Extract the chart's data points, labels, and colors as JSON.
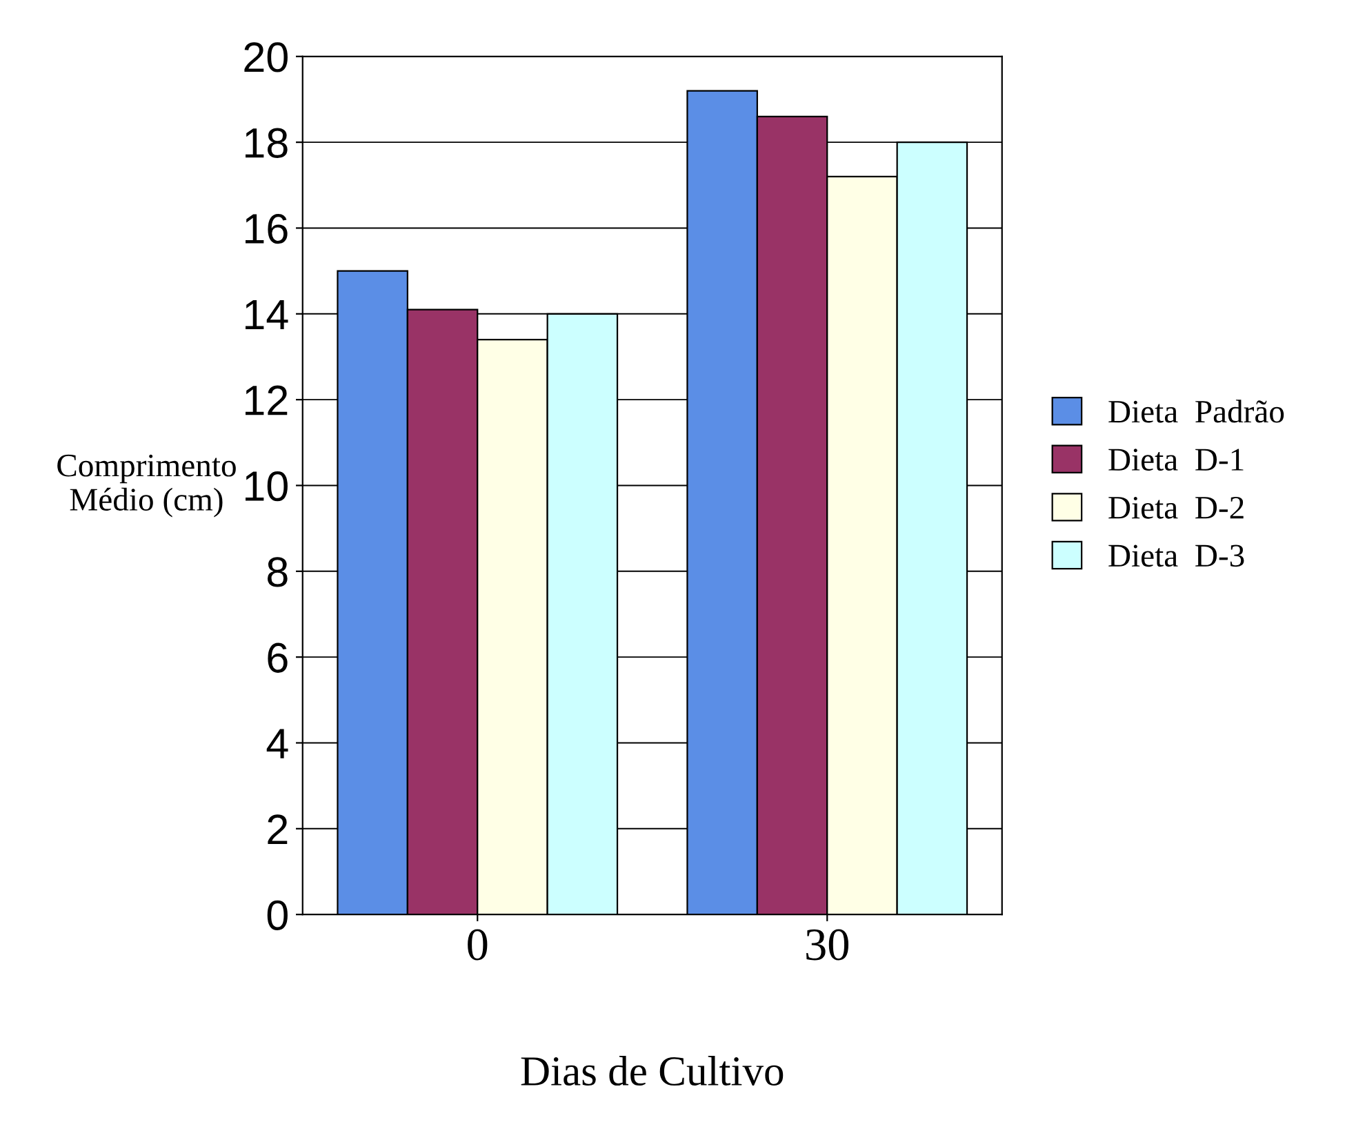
{
  "chart_data": {
    "type": "bar",
    "xlabel": "Dias de Cultivo",
    "ylabel": "Comprimento\nMédio (cm)",
    "categories": [
      "0",
      "30"
    ],
    "series": [
      {
        "name": "Dieta  Padrão",
        "color": "#5b8ee6",
        "values": [
          15.0,
          19.2
        ]
      },
      {
        "name": "Dieta  D-1",
        "color": "#993366",
        "values": [
          14.1,
          18.6
        ]
      },
      {
        "name": "Dieta  D-2",
        "color": "#ffffe6",
        "values": [
          13.4,
          17.2
        ]
      },
      {
        "name": "Dieta  D-3",
        "color": "#ccffff",
        "values": [
          14.0,
          18.0
        ]
      }
    ],
    "ylim": [
      0,
      20
    ],
    "yticks": [
      0,
      2,
      4,
      6,
      8,
      10,
      12,
      14,
      16,
      18,
      20
    ],
    "grid": "y",
    "legend": "right"
  }
}
